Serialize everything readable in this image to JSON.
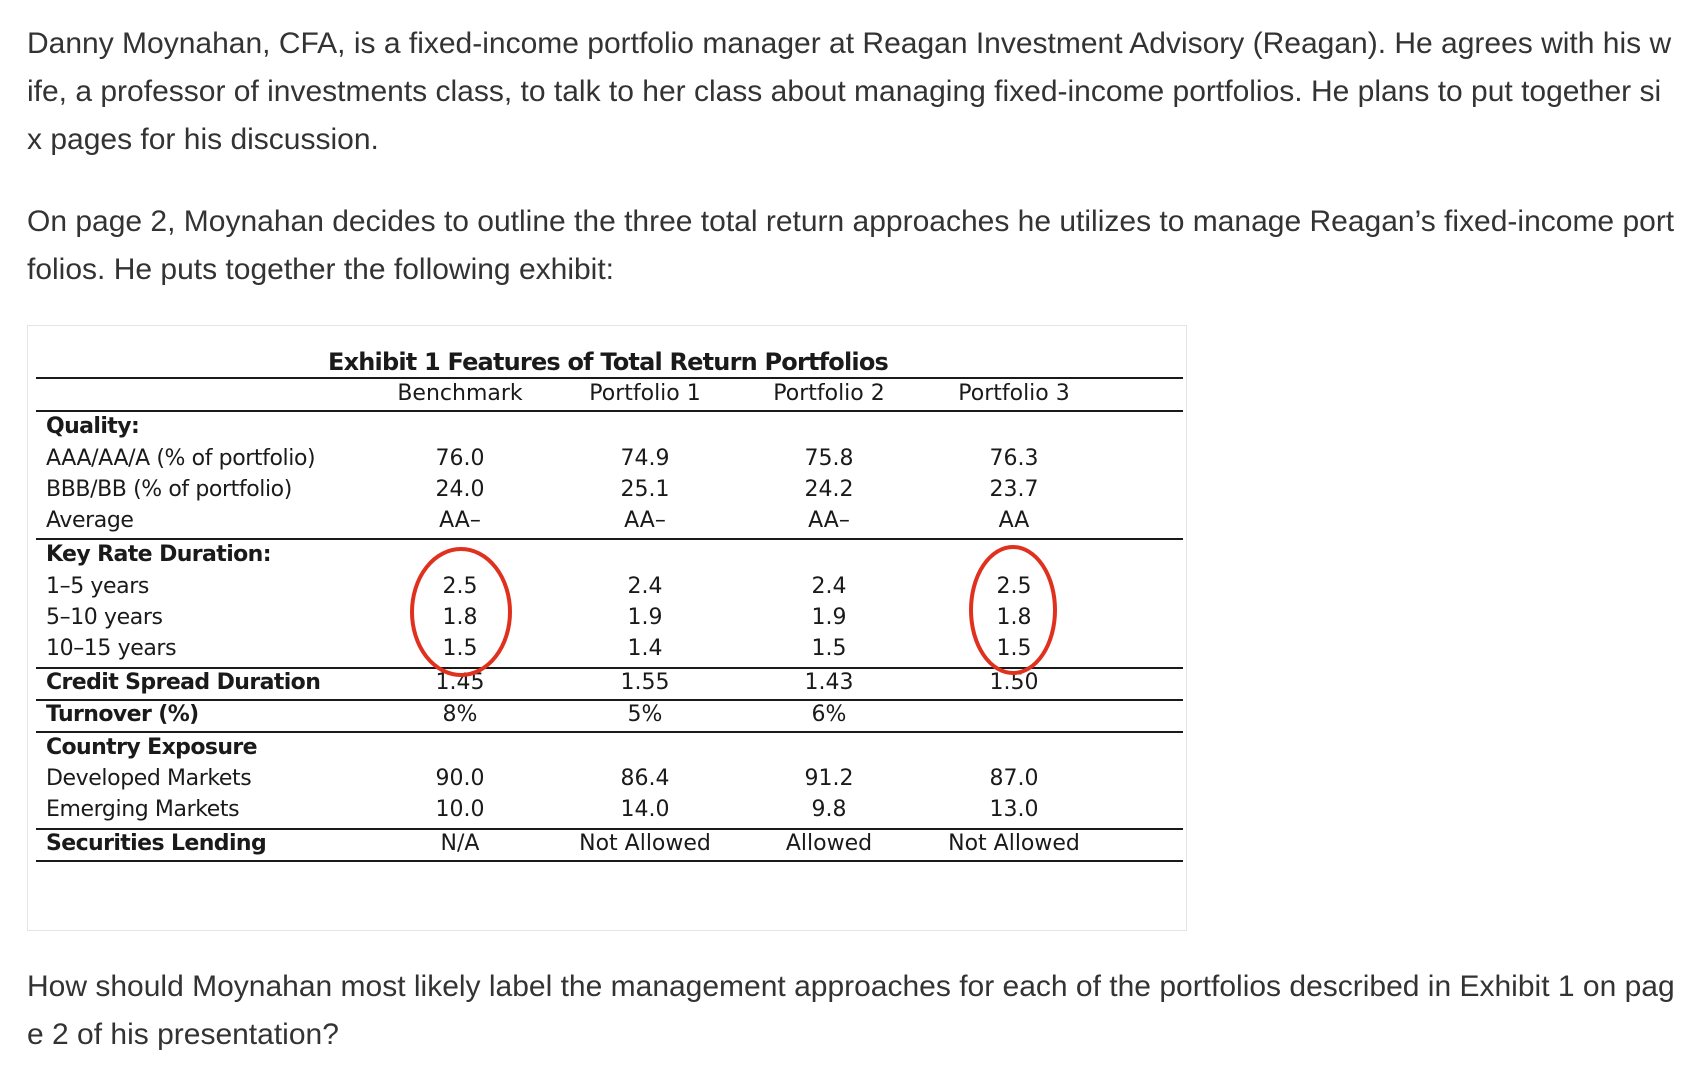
{
  "intro_paragraph": "Danny Moynahan, CFA, is a fixed-income portfolio manager at Reagan Investment Advisory (Reagan). He agrees with his wife, a professor of investments class, to talk to her class about managing fixed-income portfolios. He plans to put together six pages for his discussion.",
  "page2_paragraph": "On page 2, Moynahan decides to outline the three total return approaches he utilizes to manage Reagan’s fixed-income portfolios. He puts together the following exhibit:",
  "question_paragraph": "How should Moynahan most likely label the management approaches for each of the portfolios described in Exhibit 1 on page 2 of his presentation?",
  "exhibit": {
    "title": "Exhibit 1 Features of Total Return Portfolios",
    "columns": [
      "Benchmark",
      "Portfolio 1",
      "Portfolio 2",
      "Portfolio 3"
    ],
    "quality": {
      "section": "Quality:",
      "rows": [
        {
          "label": "AAA/AA/A (% of portfolio)",
          "values": [
            "76.0",
            "74.9",
            "75.8",
            "76.3"
          ]
        },
        {
          "label": "BBB/BB (% of portfolio)",
          "values": [
            "24.0",
            "25.1",
            "24.2",
            "23.7"
          ]
        },
        {
          "label": "Average",
          "values": [
            "AA–",
            "AA–",
            "AA–",
            "AA"
          ]
        }
      ]
    },
    "key_rate": {
      "section": "Key Rate Duration:",
      "rows": [
        {
          "label": "1–5 years",
          "values": [
            "2.5",
            "2.4",
            "2.4",
            "2.5"
          ]
        },
        {
          "label": "5–10 years",
          "values": [
            "1.8",
            "1.9",
            "1.9",
            "1.8"
          ]
        },
        {
          "label": "10–15 years",
          "values": [
            "1.5",
            "1.4",
            "1.5",
            "1.5"
          ]
        }
      ]
    },
    "credit_spread": {
      "label": "Credit Spread Duration",
      "values": [
        "1.45",
        "1.55",
        "1.43",
        "1.50"
      ]
    },
    "turnover": {
      "label": "Turnover (%)",
      "values": [
        "8%",
        "5%",
        "6%"
      ]
    },
    "country": {
      "section": "Country Exposure",
      "rows": [
        {
          "label": "Developed Markets",
          "values": [
            "90.0",
            "86.4",
            "91.2",
            "87.0"
          ]
        },
        {
          "label": "Emerging Markets",
          "values": [
            "10.0",
            "14.0",
            "9.8",
            "13.0"
          ]
        }
      ]
    },
    "securities_lending": {
      "label": "Securities Lending",
      "values": [
        "N/A",
        "Not Allowed",
        "Allowed",
        "Not Allowed"
      ]
    },
    "annotation_color": "#e0301e"
  }
}
